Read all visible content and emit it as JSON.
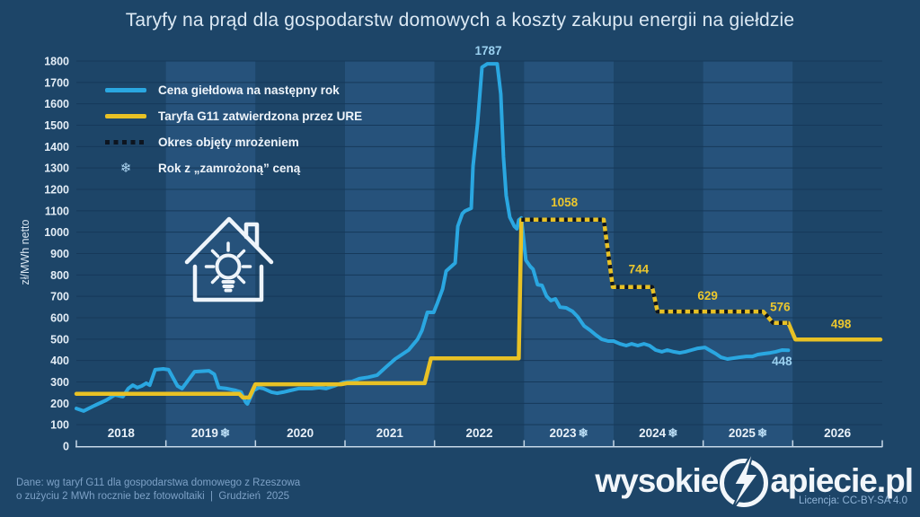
{
  "title": "Taryfy na prąd dla gospodarstw domowych a koszty zakupu energii na giełdzie",
  "legend": [
    {
      "key": "market-price",
      "label": "Cena giełdowa na następny rok",
      "swatch": "solid",
      "color": "#2aa7e1"
    },
    {
      "key": "tariff-g11",
      "label": "Taryfa G11 zatwierdzona przez URE",
      "swatch": "solid",
      "color": "#e8c125"
    },
    {
      "key": "frozen-period",
      "label": "Okres objęty mrożeniem",
      "swatch": "dotted",
      "color": "#0d1520"
    },
    {
      "key": "frozen-year",
      "label": "Rok z „zamrożoną” ceną",
      "swatch": "snowflake",
      "symbol": "❄",
      "color": "#aed6f2"
    }
  ],
  "colors": {
    "background": "#1d4568",
    "band_dark": "#1d4568",
    "band_light": "#26527b",
    "gridline": "#16395a",
    "axis": "#c6d8e8",
    "market_price_line": "#2aa7e1",
    "tariff_line": "#e8c125",
    "frozen_overlay": "#0d1520",
    "label_blue": "#9bd1f0",
    "label_yellow": "#ecc72e",
    "snowflake": "#b9dcf4"
  },
  "chart_data": {
    "type": "line",
    "title": "Taryfy na prąd dla gospodarstw domowych a koszty zakupu energii na giełdzie",
    "xlabel": "",
    "ylabel": "zł/MWh netto",
    "ylim": [
      0,
      1800
    ],
    "ytick_step": 100,
    "xlim": [
      2018,
      2027
    ],
    "grid": true,
    "legend_position": "top-left",
    "snowflake_symbol": "❄",
    "x_years": [
      {
        "label": "2018",
        "frozen": false
      },
      {
        "label": "2019",
        "frozen": true
      },
      {
        "label": "2020",
        "frozen": false
      },
      {
        "label": "2021",
        "frozen": false
      },
      {
        "label": "2022",
        "frozen": false
      },
      {
        "label": "2023",
        "frozen": true
      },
      {
        "label": "2024",
        "frozen": true
      },
      {
        "label": "2025",
        "frozen": true
      },
      {
        "label": "2026",
        "frozen": false
      }
    ],
    "series": [
      {
        "key": "market-price",
        "name": "Cena giełdowa na następny rok",
        "color": "#2aa7e1",
        "width": 4,
        "points": [
          [
            2018.0,
            176
          ],
          [
            2018.08,
            164
          ],
          [
            2018.2,
            189
          ],
          [
            2018.33,
            214
          ],
          [
            2018.43,
            239
          ],
          [
            2018.52,
            231
          ],
          [
            2018.58,
            269
          ],
          [
            2018.63,
            285
          ],
          [
            2018.68,
            273
          ],
          [
            2018.73,
            281
          ],
          [
            2018.78,
            294
          ],
          [
            2018.82,
            285
          ],
          [
            2018.88,
            357
          ],
          [
            2018.97,
            361
          ],
          [
            2019.03,
            357
          ],
          [
            2019.13,
            281
          ],
          [
            2019.18,
            269
          ],
          [
            2019.32,
            348
          ],
          [
            2019.48,
            352
          ],
          [
            2019.54,
            336
          ],
          [
            2019.59,
            273
          ],
          [
            2019.68,
            269
          ],
          [
            2019.78,
            260
          ],
          [
            2019.84,
            252
          ],
          [
            2019.89,
            205
          ],
          [
            2019.91,
            197
          ],
          [
            2019.98,
            260
          ],
          [
            2020.04,
            273
          ],
          [
            2020.09,
            269
          ],
          [
            2020.18,
            252
          ],
          [
            2020.24,
            247
          ],
          [
            2020.31,
            252
          ],
          [
            2020.39,
            260
          ],
          [
            2020.48,
            269
          ],
          [
            2020.63,
            269
          ],
          [
            2020.71,
            273
          ],
          [
            2020.79,
            269
          ],
          [
            2020.88,
            281
          ],
          [
            2020.98,
            298
          ],
          [
            2021.08,
            302
          ],
          [
            2021.16,
            315
          ],
          [
            2021.26,
            322
          ],
          [
            2021.36,
            332
          ],
          [
            2021.46,
            370
          ],
          [
            2021.56,
            407
          ],
          [
            2021.71,
            449
          ],
          [
            2021.81,
            499
          ],
          [
            2021.86,
            541
          ],
          [
            2021.89,
            583
          ],
          [
            2021.92,
            625
          ],
          [
            2021.99,
            625
          ],
          [
            2022.03,
            667
          ],
          [
            2022.09,
            734
          ],
          [
            2022.13,
            818
          ],
          [
            2022.23,
            856
          ],
          [
            2022.26,
            1028
          ],
          [
            2022.31,
            1087
          ],
          [
            2022.34,
            1099
          ],
          [
            2022.41,
            1112
          ],
          [
            2022.43,
            1309
          ],
          [
            2022.48,
            1506
          ],
          [
            2022.53,
            1771
          ],
          [
            2022.59,
            1787
          ],
          [
            2022.7,
            1787
          ],
          [
            2022.74,
            1645
          ],
          [
            2022.77,
            1351
          ],
          [
            2022.8,
            1171
          ],
          [
            2022.84,
            1070
          ],
          [
            2022.87,
            1045
          ],
          [
            2022.89,
            1028
          ],
          [
            2022.92,
            1016
          ],
          [
            2022.94,
            1057
          ],
          [
            2022.97,
            1066
          ],
          [
            2023.02,
            869
          ],
          [
            2023.07,
            839
          ],
          [
            2023.1,
            827
          ],
          [
            2023.15,
            755
          ],
          [
            2023.2,
            751
          ],
          [
            2023.25,
            701
          ],
          [
            2023.3,
            680
          ],
          [
            2023.35,
            688
          ],
          [
            2023.4,
            650
          ],
          [
            2023.47,
            646
          ],
          [
            2023.54,
            630
          ],
          [
            2023.6,
            604
          ],
          [
            2023.67,
            562
          ],
          [
            2023.74,
            541
          ],
          [
            2023.8,
            520
          ],
          [
            2023.87,
            499
          ],
          [
            2023.94,
            491
          ],
          [
            2024.0,
            491
          ],
          [
            2024.07,
            478
          ],
          [
            2024.14,
            470
          ],
          [
            2024.2,
            478
          ],
          [
            2024.27,
            470
          ],
          [
            2024.34,
            478
          ],
          [
            2024.4,
            470
          ],
          [
            2024.47,
            449
          ],
          [
            2024.54,
            441
          ],
          [
            2024.6,
            449
          ],
          [
            2024.67,
            441
          ],
          [
            2024.74,
            436
          ],
          [
            2024.8,
            441
          ],
          [
            2024.87,
            449
          ],
          [
            2024.94,
            457
          ],
          [
            2025.02,
            461
          ],
          [
            2025.07,
            449
          ],
          [
            2025.14,
            432
          ],
          [
            2025.2,
            415
          ],
          [
            2025.27,
            407
          ],
          [
            2025.34,
            411
          ],
          [
            2025.4,
            415
          ],
          [
            2025.48,
            419
          ],
          [
            2025.55,
            419
          ],
          [
            2025.61,
            428
          ],
          [
            2025.68,
            432
          ],
          [
            2025.75,
            436
          ],
          [
            2025.81,
            441
          ],
          [
            2025.88,
            449
          ],
          [
            2025.95,
            448
          ]
        ]
      },
      {
        "key": "tariff-g11",
        "name": "Taryfa G11 zatwierdzona przez URE",
        "color": "#e8c125",
        "width": 4.5,
        "points": [
          [
            2018.0,
            244
          ],
          [
            2019.82,
            244
          ],
          [
            2019.86,
            227
          ],
          [
            2019.93,
            227
          ],
          [
            2020.0,
            289
          ],
          [
            2020.96,
            289
          ],
          [
            2021.02,
            294
          ],
          [
            2021.89,
            294
          ],
          [
            2021.96,
            410
          ],
          [
            2022.94,
            410
          ],
          [
            2022.97,
            1058
          ],
          [
            2023.89,
            1058
          ],
          [
            2023.99,
            744
          ],
          [
            2024.43,
            744
          ],
          [
            2024.49,
            629
          ],
          [
            2025.67,
            629
          ],
          [
            2025.78,
            576
          ],
          [
            2025.95,
            576
          ],
          [
            2026.03,
            498
          ],
          [
            2026.98,
            498
          ]
        ]
      },
      {
        "key": "frozen-period",
        "name": "Okres objęty mrożeniem",
        "color": "#0d1520",
        "width": 4.5,
        "dash": "4 5.5",
        "points": [
          [
            2022.97,
            1058
          ],
          [
            2023.89,
            1058
          ],
          [
            2023.99,
            744
          ],
          [
            2024.43,
            744
          ],
          [
            2024.49,
            629
          ],
          [
            2025.67,
            629
          ],
          [
            2025.78,
            576
          ],
          [
            2025.95,
            576
          ]
        ]
      }
    ],
    "annotations": [
      {
        "text": "1787",
        "x": 2022.6,
        "y": 1787,
        "dy": -10,
        "color": "blue"
      },
      {
        "text": "1058",
        "x": 2023.45,
        "y": 1058,
        "dy": -15,
        "color": "yellow"
      },
      {
        "text": "744",
        "x": 2024.28,
        "y": 744,
        "dy": -15,
        "color": "yellow"
      },
      {
        "text": "629",
        "x": 2025.05,
        "y": 629,
        "dy": -13,
        "color": "yellow"
      },
      {
        "text": "576",
        "x": 2025.86,
        "y": 576,
        "dy": -13,
        "color": "yellow"
      },
      {
        "text": "498",
        "x": 2026.54,
        "y": 498,
        "dy": -13,
        "color": "yellow"
      },
      {
        "text": "448",
        "x": 2025.88,
        "y": 448,
        "dy": 17,
        "color": "blue"
      }
    ]
  },
  "footer": {
    "source_line1": "Dane: wg taryf G11 dla gospodarstwa domowego z Rzeszowa",
    "source_line2": "o zużyciu 2 MWh rocznie bez fotowoltaiki  |  Grudzień  2025",
    "license": "Licencja: CC-BY-SA 4.0"
  },
  "logo": {
    "prefix": "wysokie",
    "suffix": "apiecie.pl"
  }
}
